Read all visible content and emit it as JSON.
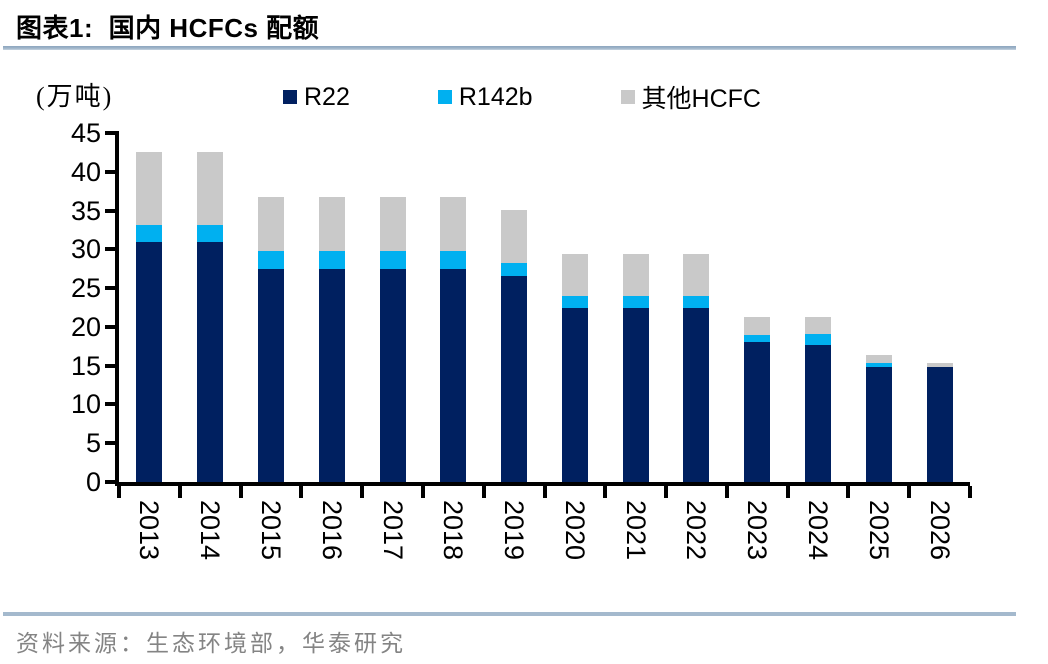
{
  "header": {
    "title": "图表1:  国内 HCFCs 配额"
  },
  "unit_label": "(万吨)",
  "legend": [
    {
      "label": "R22",
      "color": "#002060"
    },
    {
      "label": "R142b",
      "color": "#00b0f0"
    },
    {
      "label": "其他HCFC",
      "color": "#c9c9c9"
    }
  ],
  "footer": {
    "source": "资料来源：生态环境部，华泰研究"
  },
  "colors": {
    "r22": "#002060",
    "r142b": "#00b0f0",
    "other_hcfc": "#c9c9c9",
    "axis": "#000000",
    "rule": "#9fb5c9",
    "footer_text": "#848484"
  },
  "chart_data": {
    "type": "bar",
    "stacked": true,
    "title": "图表1: 国内 HCFCs 配额",
    "unit": "万吨",
    "xlabel": "",
    "ylabel": "(万吨)",
    "categories": [
      "2013",
      "2014",
      "2015",
      "2016",
      "2017",
      "2018",
      "2019",
      "2020",
      "2021",
      "2022",
      "2023",
      "2024",
      "2025",
      "2026"
    ],
    "series": [
      {
        "name": "R22",
        "color": "#002060",
        "values": [
          30.9,
          30.9,
          27.5,
          27.5,
          27.5,
          27.5,
          26.6,
          22.4,
          22.4,
          22.4,
          18.1,
          17.7,
          14.8,
          14.8
        ]
      },
      {
        "name": "R142b",
        "color": "#00b0f0",
        "values": [
          2.3,
          2.3,
          2.3,
          2.3,
          2.3,
          2.3,
          1.6,
          1.6,
          1.6,
          1.6,
          0.9,
          1.4,
          0.5,
          0
        ]
      },
      {
        "name": "其他HCFC",
        "color": "#c9c9c9",
        "values": [
          9.4,
          9.4,
          6.9,
          6.9,
          6.9,
          6.9,
          6.9,
          5.4,
          5.4,
          5.4,
          2.3,
          2.2,
          1.1,
          0.5
        ]
      }
    ],
    "totals": [
      42.6,
      42.6,
      36.7,
      36.7,
      36.7,
      36.7,
      35.1,
      29.4,
      29.4,
      29.4,
      21.3,
      21.3,
      16.4,
      15.3
    ],
    "ylim": [
      0,
      45
    ],
    "ytick_step": 5,
    "legend_position": "top",
    "grid": false
  }
}
